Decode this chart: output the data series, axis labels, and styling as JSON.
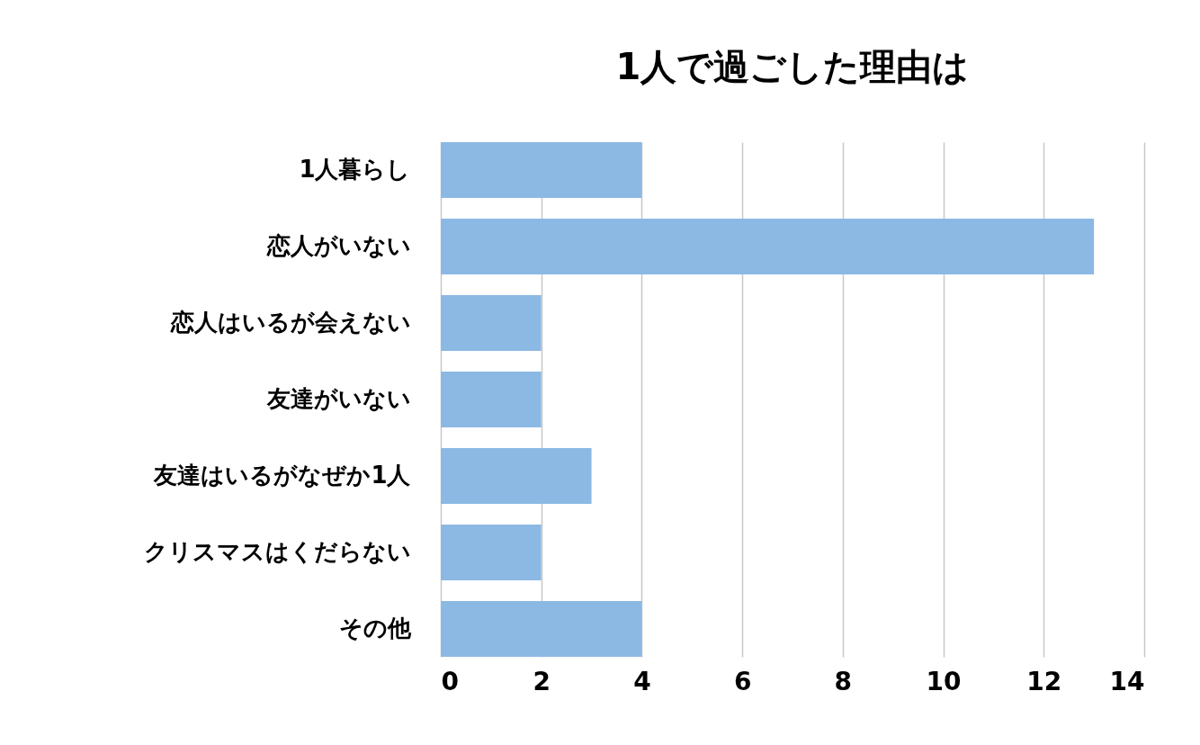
{
  "chart_data": {
    "type": "bar",
    "orientation": "horizontal",
    "title": "1人で過ごした理由は",
    "categories": [
      "1人暮らし",
      "恋人がいない",
      "恋人はいるが会えない",
      "友達がいない",
      "友達はいるがなぜか1人",
      "クリスマスはくだらない",
      "その他"
    ],
    "values": [
      4,
      13,
      2,
      2,
      3,
      2,
      4
    ],
    "color": "#8cb9e3",
    "xlim": [
      0,
      14
    ],
    "xticks": [
      0,
      2,
      4,
      6,
      8,
      10,
      12,
      14
    ],
    "grid": "x"
  }
}
